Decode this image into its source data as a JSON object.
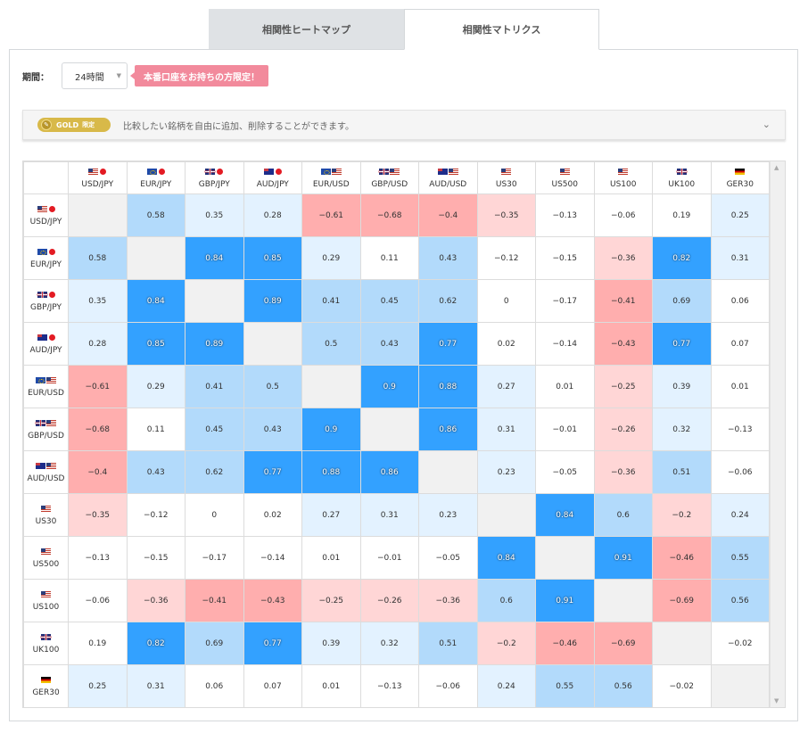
{
  "tabs": [
    {
      "label": "相関性ヒートマップ",
      "active": false
    },
    {
      "label": "相関性マトリクス",
      "active": true
    }
  ],
  "period": {
    "label": "期間：",
    "selected": "24時間"
  },
  "promo_label": "本番口座をお持ちの方限定！",
  "gold_bar": {
    "badge_text": "GOLD",
    "badge_tag": "限定",
    "message": "比較したい銘柄を自由に追加、削除することができます。"
  },
  "colors": {
    "positive_strong": "#33a1ff",
    "positive_mid": "#b2dafb",
    "positive_weak": "#e3f2ff",
    "negative_strong": "#ffaeae",
    "negative_mid": "#ffd6d6",
    "diagonal": "#f1f1f1",
    "promo": "#f28a9c",
    "gold": "#d8b949"
  },
  "symbols": [
    {
      "name": "USD/JPY",
      "flags": [
        "us",
        "jp"
      ]
    },
    {
      "name": "EUR/JPY",
      "flags": [
        "eu",
        "jp"
      ]
    },
    {
      "name": "GBP/JPY",
      "flags": [
        "gb",
        "jp"
      ]
    },
    {
      "name": "AUD/JPY",
      "flags": [
        "au",
        "jp"
      ]
    },
    {
      "name": "EUR/USD",
      "flags": [
        "eu",
        "us"
      ]
    },
    {
      "name": "GBP/USD",
      "flags": [
        "gb",
        "us"
      ]
    },
    {
      "name": "AUD/USD",
      "flags": [
        "au",
        "us"
      ]
    },
    {
      "name": "US30",
      "flags": [
        "us"
      ]
    },
    {
      "name": "US500",
      "flags": [
        "us"
      ]
    },
    {
      "name": "US100",
      "flags": [
        "us"
      ]
    },
    {
      "name": "UK100",
      "flags": [
        "gb"
      ]
    },
    {
      "name": "GER30",
      "flags": [
        "de"
      ]
    }
  ],
  "matrix": [
    [
      null,
      "0.58",
      "0.35",
      "0.28",
      "−0.61",
      "−0.68",
      "−0.4",
      "−0.35",
      "−0.13",
      "−0.06",
      "0.19",
      "0.25"
    ],
    [
      "0.58",
      null,
      "0.84",
      "0.85",
      "0.29",
      "0.11",
      "0.43",
      "−0.12",
      "−0.15",
      "−0.36",
      "0.82",
      "0.31"
    ],
    [
      "0.35",
      "0.84",
      null,
      "0.89",
      "0.41",
      "0.45",
      "0.62",
      "0",
      "−0.17",
      "−0.41",
      "0.69",
      "0.06"
    ],
    [
      "0.28",
      "0.85",
      "0.89",
      null,
      "0.5",
      "0.43",
      "0.77",
      "0.02",
      "−0.14",
      "−0.43",
      "0.77",
      "0.07"
    ],
    [
      "−0.61",
      "0.29",
      "0.41",
      "0.5",
      null,
      "0.9",
      "0.88",
      "0.27",
      "0.01",
      "−0.25",
      "0.39",
      "0.01"
    ],
    [
      "−0.68",
      "0.11",
      "0.45",
      "0.43",
      "0.9",
      null,
      "0.86",
      "0.31",
      "−0.01",
      "−0.26",
      "0.32",
      "−0.13"
    ],
    [
      "−0.4",
      "0.43",
      "0.62",
      "0.77",
      "0.88",
      "0.86",
      null,
      "0.23",
      "−0.05",
      "−0.36",
      "0.51",
      "−0.06"
    ],
    [
      "−0.35",
      "−0.12",
      "0",
      "0.02",
      "0.27",
      "0.31",
      "0.23",
      null,
      "0.84",
      "0.6",
      "−0.2",
      "0.24"
    ],
    [
      "−0.13",
      "−0.15",
      "−0.17",
      "−0.14",
      "0.01",
      "−0.01",
      "−0.05",
      "0.84",
      null,
      "0.91",
      "−0.46",
      "0.55"
    ],
    [
      "−0.06",
      "−0.36",
      "−0.41",
      "−0.43",
      "−0.25",
      "−0.26",
      "−0.36",
      "0.6",
      "0.91",
      null,
      "−0.69",
      "0.56"
    ],
    [
      "0.19",
      "0.82",
      "0.69",
      "0.77",
      "0.39",
      "0.32",
      "0.51",
      "−0.2",
      "−0.46",
      "−0.69",
      null,
      "−0.02"
    ],
    [
      "0.25",
      "0.31",
      "0.06",
      "0.07",
      "0.01",
      "−0.13",
      "−0.06",
      "0.24",
      "0.55",
      "0.56",
      "−0.02",
      null
    ]
  ]
}
